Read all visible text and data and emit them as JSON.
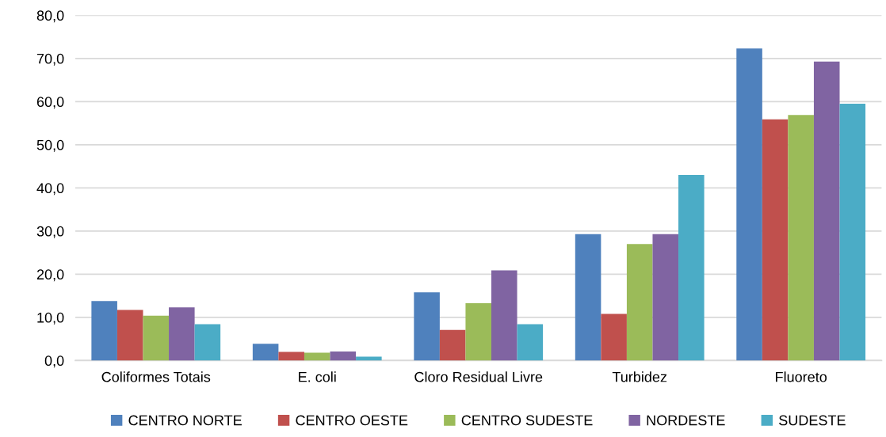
{
  "chart_data": {
    "type": "bar",
    "categories": [
      "Coliformes Totais",
      "E. coli",
      "Cloro Residual Livre",
      "Turbidez",
      "Fluoreto"
    ],
    "series": [
      {
        "name": "CENTRO NORTE",
        "color": "#4f81bd",
        "values": [
          13.8,
          3.9,
          15.8,
          29.3,
          72.3
        ]
      },
      {
        "name": "CENTRO OESTE",
        "color": "#c0504d",
        "values": [
          11.7,
          2.0,
          7.1,
          10.8,
          55.9
        ]
      },
      {
        "name": "CENTRO SUDESTE",
        "color": "#9bbb59",
        "values": [
          10.4,
          1.8,
          13.3,
          27.0,
          56.9
        ]
      },
      {
        "name": "NORDESTE",
        "color": "#8064a2",
        "values": [
          12.3,
          2.1,
          20.9,
          29.3,
          69.3
        ]
      },
      {
        "name": "SUDESTE",
        "color": "#4bacc6",
        "values": [
          8.4,
          0.9,
          8.4,
          43.0,
          59.5
        ]
      }
    ],
    "ylim": [
      0,
      80
    ],
    "yticks": [
      {
        "value": 0,
        "label": "0,0"
      },
      {
        "value": 10,
        "label": "10,0"
      },
      {
        "value": 20,
        "label": "20,0"
      },
      {
        "value": 30,
        "label": "30,0"
      },
      {
        "value": 40,
        "label": "40,0"
      },
      {
        "value": 50,
        "label": "50,0"
      },
      {
        "value": 60,
        "label": "60,0"
      },
      {
        "value": 70,
        "label": "70,0"
      },
      {
        "value": 80,
        "label": "80,0"
      }
    ],
    "grid": "y",
    "legend": "bottom"
  }
}
